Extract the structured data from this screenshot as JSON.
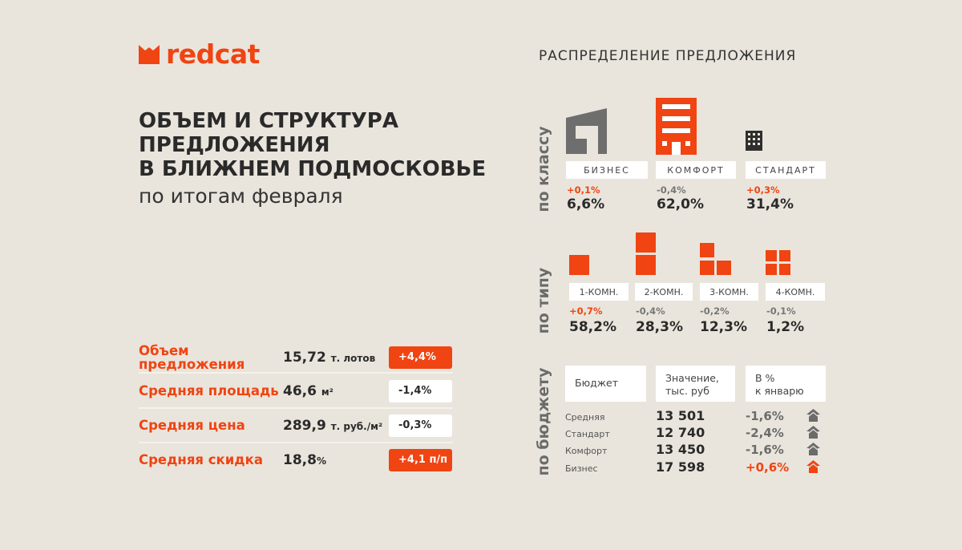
{
  "logo": {
    "text": "redcat"
  },
  "header": {
    "distribution_title": "РАСПРЕДЕЛЕНИЕ ПРЕДЛОЖЕНИЯ"
  },
  "title": {
    "line1": "ОБЪЕМ И СТРУКТУРА",
    "line2": "ПРЕДЛОЖЕНИЯ",
    "line3": "В БЛИЖНЕМ ПОДМОСКОВЬЕ",
    "subtitle": "по итогам февраля"
  },
  "stats": [
    {
      "label": "Объем предложения",
      "value": "15,72",
      "unit": "т. лотов",
      "change": "+4,4%"
    },
    {
      "label": "Средняя площадь",
      "value": "46,6",
      "unit": "м²",
      "change": "-1,4%"
    },
    {
      "label": "Средняя цена",
      "value": "289,9",
      "unit": "т. руб./м²",
      "change": "-0,3%"
    },
    {
      "label": "Средняя скидка",
      "value": "18,8",
      "unit": "%",
      "change": "+4,1 п/п"
    }
  ],
  "by_class": {
    "label": "по классу",
    "items": [
      {
        "name": "БИЗНЕС",
        "change": "+0,1%",
        "value": "6,6%"
      },
      {
        "name": "КОМФОРТ",
        "change": "-0,4%",
        "value": "62,0%"
      },
      {
        "name": "СТАНДАРТ",
        "change": "+0,3%",
        "value": "31,4%"
      }
    ]
  },
  "by_type": {
    "label": "по типу",
    "items": [
      {
        "name": "1-КОМН.",
        "change": "+0,7%",
        "value": "58,2%"
      },
      {
        "name": "2-КОМН.",
        "change": "-0,4%",
        "value": "28,3%"
      },
      {
        "name": "3-КОМН.",
        "change": "-0,2%",
        "value": "12,3%"
      },
      {
        "name": "4-КОМН.",
        "change": "-0,1%",
        "value": "1,2%"
      }
    ]
  },
  "by_budget": {
    "label": "по бюджету",
    "headers": [
      "Бюджет",
      "Значение,",
      "тыс. руб",
      "В %",
      "к январю"
    ],
    "rows": [
      {
        "name": "Средняя",
        "value": "13 501",
        "change": "-1,6%"
      },
      {
        "name": "Стандарт",
        "value": "12 740",
        "change": "-2,4%"
      },
      {
        "name": "Комфорт",
        "value": "13 450",
        "change": "-1,6%"
      },
      {
        "name": "Бизнес",
        "value": "17 598",
        "change": "+0,6%"
      }
    ]
  },
  "colors": {
    "accent": "#f04412",
    "gray": "#6b6b6b",
    "background": "#e9e5dc"
  }
}
